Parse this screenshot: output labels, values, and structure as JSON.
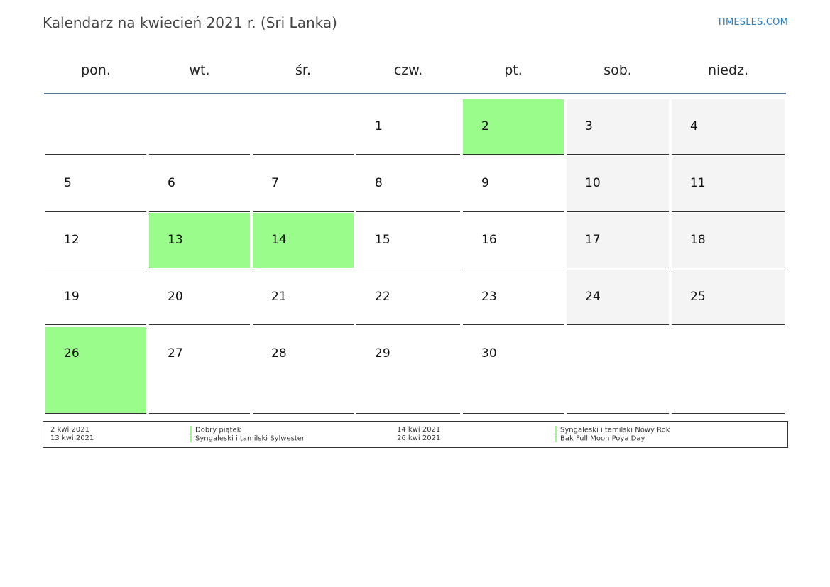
{
  "header": {
    "title": "Kalendarz na kwiecień 2021 r. (Sri Lanka)",
    "brand": "TIMESLES.COM"
  },
  "calendar": {
    "weekdays": [
      "pon.",
      "wt.",
      "śr.",
      "czw.",
      "pt.",
      "sob.",
      "niedz."
    ],
    "weeks": [
      [
        {
          "day": "",
          "type": "empty"
        },
        {
          "day": "",
          "type": "empty"
        },
        {
          "day": "",
          "type": "empty"
        },
        {
          "day": "1",
          "type": "normal"
        },
        {
          "day": "2",
          "type": "holiday"
        },
        {
          "day": "3",
          "type": "weekend"
        },
        {
          "day": "4",
          "type": "weekend"
        }
      ],
      [
        {
          "day": "5",
          "type": "normal"
        },
        {
          "day": "6",
          "type": "normal"
        },
        {
          "day": "7",
          "type": "normal"
        },
        {
          "day": "8",
          "type": "normal"
        },
        {
          "day": "9",
          "type": "normal"
        },
        {
          "day": "10",
          "type": "weekend"
        },
        {
          "day": "11",
          "type": "weekend"
        }
      ],
      [
        {
          "day": "12",
          "type": "normal"
        },
        {
          "day": "13",
          "type": "holiday"
        },
        {
          "day": "14",
          "type": "holiday"
        },
        {
          "day": "15",
          "type": "normal"
        },
        {
          "day": "16",
          "type": "normal"
        },
        {
          "day": "17",
          "type": "weekend"
        },
        {
          "day": "18",
          "type": "weekend"
        }
      ],
      [
        {
          "day": "19",
          "type": "normal"
        },
        {
          "day": "20",
          "type": "normal"
        },
        {
          "day": "21",
          "type": "normal"
        },
        {
          "day": "22",
          "type": "normal"
        },
        {
          "day": "23",
          "type": "normal"
        },
        {
          "day": "24",
          "type": "weekend"
        },
        {
          "day": "25",
          "type": "weekend"
        }
      ],
      [
        {
          "day": "26",
          "type": "holiday"
        },
        {
          "day": "27",
          "type": "normal"
        },
        {
          "day": "28",
          "type": "normal"
        },
        {
          "day": "29",
          "type": "normal"
        },
        {
          "day": "30",
          "type": "normal"
        },
        {
          "day": "",
          "type": "empty"
        },
        {
          "day": "",
          "type": "empty"
        }
      ]
    ]
  },
  "legend": {
    "items": [
      {
        "date": "2 kwi 2021",
        "name": "Dobry piątek"
      },
      {
        "date": "13 kwi 2021",
        "name": "Syngaleski i tamilski Sylwester"
      },
      {
        "date": "14 kwi 2021",
        "name": "Syngaleski i tamilski Nowy Rok"
      },
      {
        "date": "26 kwi 2021",
        "name": "Bak Full Moon Poya Day"
      }
    ]
  },
  "colors": {
    "holiday": "#9afc8a",
    "weekend": "#f4f4f4",
    "header_rule": "#5a7496",
    "brand": "#2d7fc1"
  }
}
